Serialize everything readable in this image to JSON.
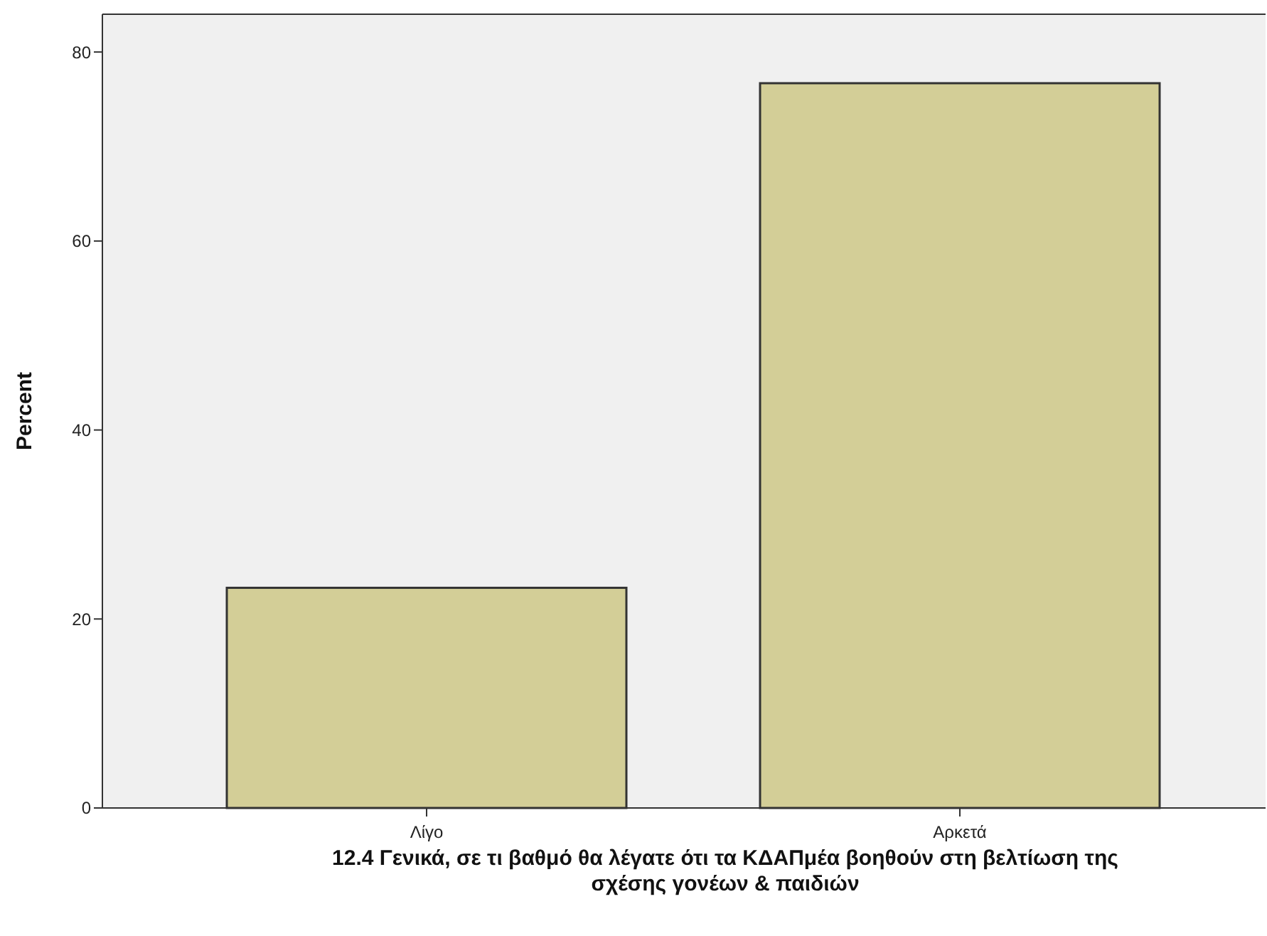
{
  "chart_data": {
    "type": "bar",
    "xlabel": "12.4 Γενικά, σε τι βαθμό θα λέγατε ότι τα ΚΔΑΠμέα βοηθούν στη βελτίωση της σχέσης γονέων & παιδιών",
    "ylabel": "Percent",
    "categories": [
      "Λίγο",
      "Αρκετά"
    ],
    "values": [
      23.3,
      76.7
    ],
    "color": "#d3ce97",
    "ylim": [
      0,
      84
    ],
    "yticks": [
      0,
      20,
      40,
      60,
      80
    ],
    "grid": false
  }
}
